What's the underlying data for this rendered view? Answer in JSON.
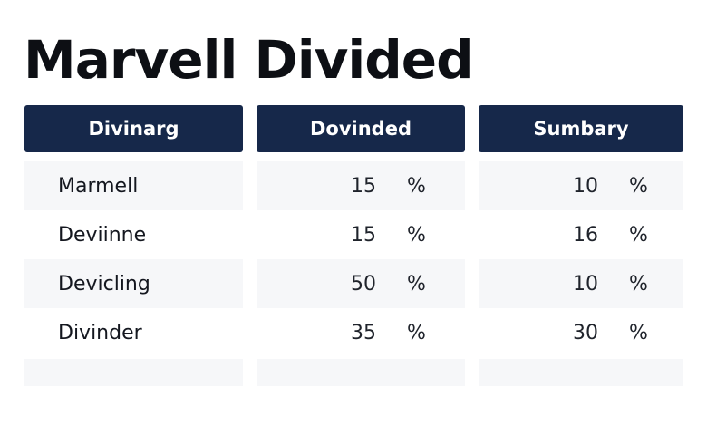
{
  "title": "Marvell Divided",
  "columns": [
    "Divinarg",
    "Dovinded",
    "Sumbary"
  ],
  "rows": [
    {
      "label": "Marmell",
      "dovinded": "15",
      "dovinded_unit": "%",
      "sumbary": "10",
      "sumbary_unit": "%"
    },
    {
      "label": "Deviinne",
      "dovinded": "15",
      "dovinded_unit": "%",
      "sumbary": "16",
      "sumbary_unit": "%"
    },
    {
      "label": "Devicling",
      "dovinded": "50",
      "dovinded_unit": "%",
      "sumbary": "10",
      "sumbary_unit": "%"
    },
    {
      "label": "Divinder",
      "dovinded": "35",
      "dovinded_unit": "%",
      "sumbary": "30",
      "sumbary_unit": "%"
    }
  ]
}
